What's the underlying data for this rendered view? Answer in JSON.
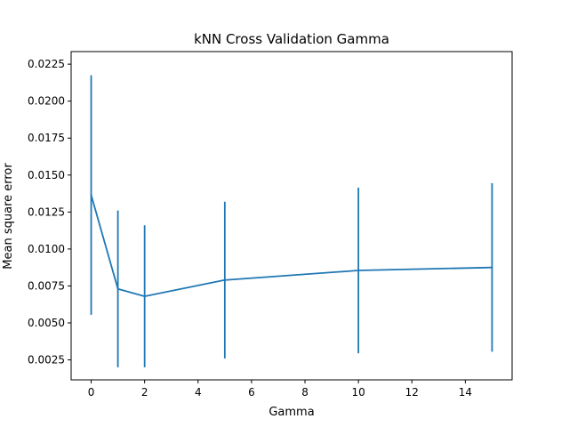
{
  "chart_data": {
    "type": "line",
    "title": "kNN Cross Validation Gamma",
    "xlabel": "Gamma",
    "ylabel": "Mean square error",
    "xlim": [
      -0.75,
      15.75
    ],
    "ylim": [
      0.00115,
      0.02335
    ],
    "x_ticks": [
      0,
      2,
      4,
      6,
      8,
      10,
      12,
      14
    ],
    "y_ticks": [
      0.0025,
      0.005,
      0.0075,
      0.01,
      0.0125,
      0.015,
      0.0175,
      0.02,
      0.0225
    ],
    "x_tick_labels": [
      "0",
      "2",
      "4",
      "6",
      "8",
      "10",
      "12",
      "14"
    ],
    "y_tick_labels": [
      "0.0025",
      "0.0050",
      "0.0075",
      "0.0100",
      "0.0125",
      "0.0150",
      "0.0175",
      "0.0200",
      "0.0225"
    ],
    "grid": false,
    "series": [
      {
        "x": [
          0,
          1,
          2,
          5,
          10,
          15
        ],
        "y": [
          0.01365,
          0.0073,
          0.0068,
          0.0079,
          0.00855,
          0.00875
        ],
        "yerr": [
          0.0081,
          0.0053,
          0.0048,
          0.0053,
          0.0056,
          0.0057
        ],
        "color": "#1f77b4"
      }
    ]
  }
}
